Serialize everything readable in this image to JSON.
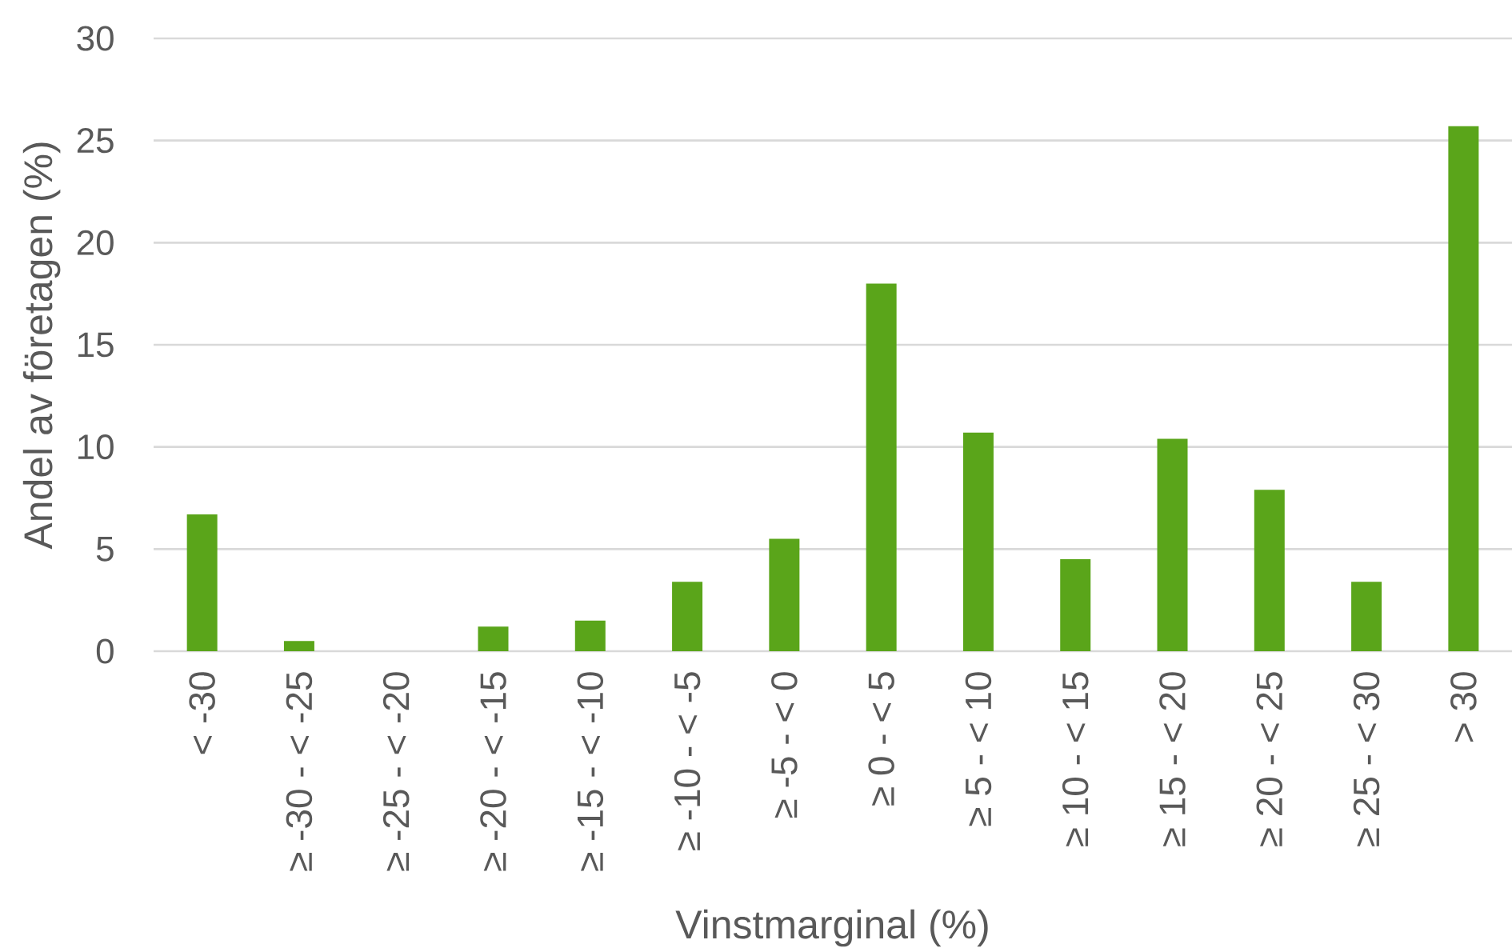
{
  "chart_data": {
    "type": "bar",
    "xlabel": "Vinstmarginal (%)",
    "ylabel": "Andel av företagen (%)",
    "categories": [
      "< -30",
      "≥ -30 - < -25",
      "≥ -25 - < -20",
      "≥ -20 - < -15",
      "≥ -15 - < -10",
      "≥ -10 - < -5",
      "≥ -5 - < 0",
      "≥ 0 - < 5",
      "≥ 5 - < 10",
      "≥ 10 - < 15",
      "≥ 15 - < 20",
      "≥ 20 - < 25",
      "≥ 25 - < 30",
      "> 30"
    ],
    "values": [
      6.7,
      0.5,
      0,
      1.2,
      1.5,
      3.4,
      5.5,
      18.0,
      10.7,
      4.5,
      10.4,
      7.9,
      3.4,
      25.7
    ],
    "color": "#5aa51a",
    "ylim": [
      0,
      30
    ],
    "yticks": [
      0,
      5,
      10,
      15,
      20,
      25,
      30
    ],
    "grid": "y"
  }
}
